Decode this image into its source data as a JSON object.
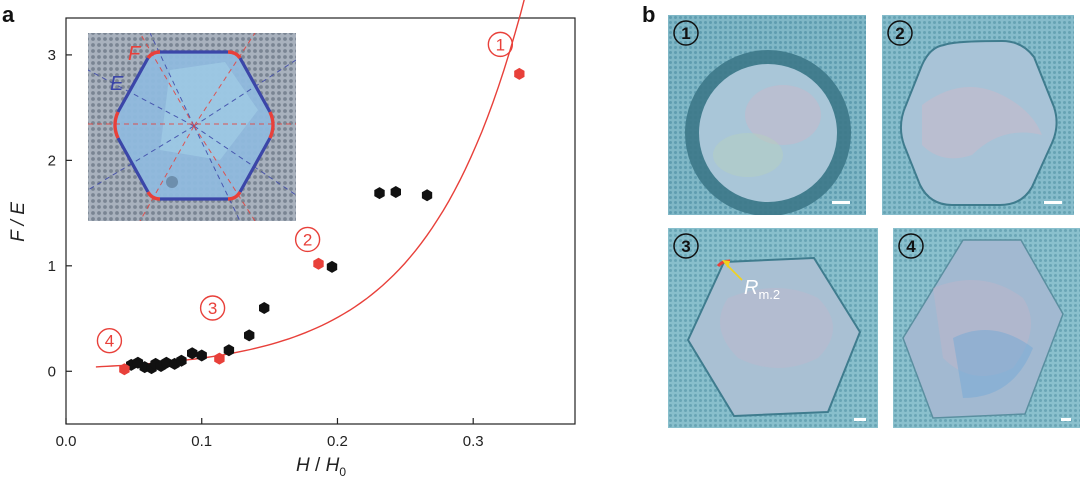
{
  "panels": {
    "a": "a",
    "b": "b"
  },
  "chart_data": {
    "type": "scatter",
    "xlabel_main": "H",
    "xlabel_sep": " / ",
    "xlabel_denom": "H",
    "xlabel_sub": "0",
    "ylabel": "F / E",
    "xlim": [
      0.0,
      0.375
    ],
    "ylim": [
      -0.5,
      3.35
    ],
    "x_ticks": [
      0.0,
      0.1,
      0.2,
      0.3
    ],
    "x_tick_labels": [
      "0.0",
      "0.1",
      "0.2",
      "0.3"
    ],
    "y_ticks": [
      0,
      1,
      2,
      3
    ],
    "y_tick_labels": [
      "0",
      "1",
      "2",
      "3"
    ],
    "grid": false,
    "series": [
      {
        "color": "#111111",
        "marker": "hexagon",
        "points": [
          [
            0.048,
            0.06
          ],
          [
            0.053,
            0.08
          ],
          [
            0.058,
            0.04
          ],
          [
            0.063,
            0.03
          ],
          [
            0.066,
            0.07
          ],
          [
            0.07,
            0.05
          ],
          [
            0.074,
            0.08
          ],
          [
            0.08,
            0.07
          ],
          [
            0.085,
            0.1
          ],
          [
            0.093,
            0.17
          ],
          [
            0.1,
            0.15
          ],
          [
            0.12,
            0.2
          ],
          [
            0.135,
            0.34
          ],
          [
            0.146,
            0.6
          ],
          [
            0.196,
            0.99
          ],
          [
            0.231,
            1.69
          ],
          [
            0.243,
            1.7
          ],
          [
            0.266,
            1.67
          ]
        ]
      },
      {
        "color": "#e8403a",
        "marker": "hexagon",
        "points": [
          [
            0.043,
            0.02
          ],
          [
            0.113,
            0.12
          ],
          [
            0.186,
            1.02
          ],
          [
            0.334,
            2.82
          ]
        ]
      }
    ],
    "fit_curve": {
      "color": "#e8403a",
      "x_start": 0.022,
      "x_end": 0.347,
      "form": "a*exp(b*x)",
      "a": 0.0307,
      "b": 14.05
    },
    "annotations": [
      {
        "label": "①",
        "x": 0.32,
        "y": 3.1
      },
      {
        "label": "②",
        "x": 0.178,
        "y": 1.25
      },
      {
        "label": "③",
        "x": 0.108,
        "y": 0.6
      },
      {
        "label": "④",
        "x": 0.032,
        "y": 0.29
      }
    ],
    "inset": {
      "label_f": "F",
      "label_e": "E"
    }
  },
  "micrographs": [
    {
      "badge": "①",
      "shape": "circle"
    },
    {
      "badge": "②",
      "shape": "rounded-hexagon"
    },
    {
      "badge": "③",
      "shape": "hexagon-rm",
      "rm_label": "R",
      "rm_sub": "m.2"
    },
    {
      "badge": "④",
      "shape": "hexagon-sharp"
    }
  ],
  "colors": {
    "red": "#e8403a",
    "blue_outline": "#3b46a8",
    "substrate": "#7fb9c9",
    "flake": "#8fb2d6"
  }
}
